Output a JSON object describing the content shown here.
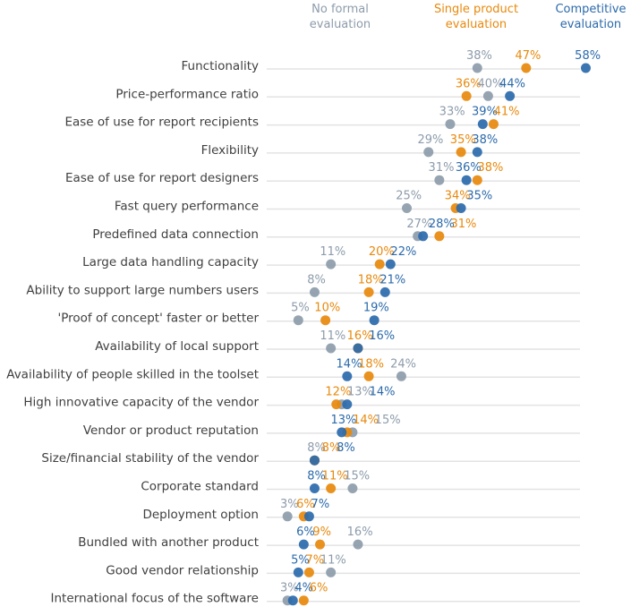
{
  "chart_data": {
    "type": "scatter",
    "title": "",
    "xlabel": "",
    "ylabel": "",
    "xlim": [
      0,
      60
    ],
    "grid": "horizontal",
    "legend_placement": "top-right",
    "unit": "%",
    "series": [
      {
        "name": "No formal evaluation",
        "color": "#8d9cab",
        "values": [
          38,
          40,
          33,
          29,
          31,
          25,
          27,
          11,
          8,
          5,
          11,
          24,
          13,
          15,
          8,
          15,
          3,
          16,
          11,
          3
        ]
      },
      {
        "name": "Single product evaluation",
        "color": "#e8890c",
        "values": [
          47,
          36,
          41,
          35,
          38,
          34,
          31,
          20,
          18,
          10,
          16,
          18,
          12,
          14,
          8,
          11,
          6,
          9,
          7,
          6
        ]
      },
      {
        "name": "Competitive evaluation",
        "color": "#2b6aab",
        "values": [
          58,
          44,
          39,
          38,
          36,
          35,
          28,
          22,
          21,
          19,
          16,
          14,
          14,
          13,
          8,
          8,
          7,
          6,
          5,
          4
        ]
      }
    ],
    "categories": [
      "Functionality",
      "Price-performance ratio",
      "Ease of use for report recipients",
      "Flexibility",
      "Ease of use for report designers",
      "Fast query performance",
      "Predefined data connection",
      "Large data handling capacity",
      "Ability to support large numbers users",
      "'Proof of concept' faster or better",
      "Availability of local support",
      "Availability of people skilled in the toolset",
      "High innovative capacity of the vendor",
      "Vendor or product reputation",
      "Size/financial stability of the vendor",
      "Corporate standard",
      "Deployment option",
      "Bundled with another product",
      "Good vendor relationship",
      "International focus of the software"
    ]
  },
  "legend": [
    {
      "line1": "No formal",
      "line2": "evaluation"
    },
    {
      "line1": "Single product",
      "line2": "evaluation"
    },
    {
      "line1": "Competitive",
      "line2": "evaluation"
    }
  ]
}
